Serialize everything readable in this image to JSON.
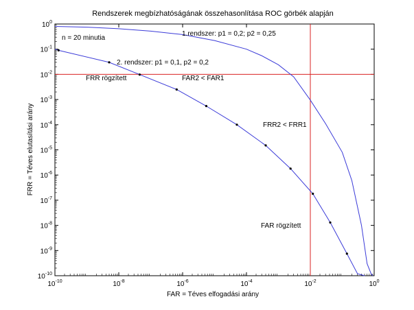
{
  "chart_data": {
    "type": "line",
    "title": "Rendszerek megbízhatóságának összehasonlítása ROC görbék alapján",
    "xlabel": "FAR = Téves elfogadási arány",
    "ylabel": "FRR = Téves elutasítási arány",
    "x_scale": "log",
    "y_scale": "log",
    "xlim": [
      1e-10,
      1
    ],
    "ylim": [
      1e-10,
      1
    ],
    "grid": false,
    "x_ticks": [
      {
        "value": 1e-10,
        "base": "10",
        "exp": "-10"
      },
      {
        "value": 1e-08,
        "base": "10",
        "exp": "-8"
      },
      {
        "value": 1e-06,
        "base": "10",
        "exp": "-6"
      },
      {
        "value": 0.0001,
        "base": "10",
        "exp": "-4"
      },
      {
        "value": 0.01,
        "base": "10",
        "exp": "-2"
      },
      {
        "value": 1,
        "base": "10",
        "exp": "0"
      }
    ],
    "y_ticks": [
      {
        "value": 1,
        "base": "10",
        "exp": "0"
      },
      {
        "value": 0.1,
        "base": "10",
        "exp": "-1"
      },
      {
        "value": 0.01,
        "base": "10",
        "exp": "-2"
      },
      {
        "value": 0.001,
        "base": "10",
        "exp": "-3"
      },
      {
        "value": 0.0001,
        "base": "10",
        "exp": "-4"
      },
      {
        "value": 1e-05,
        "base": "10",
        "exp": "-5"
      },
      {
        "value": 1e-06,
        "base": "10",
        "exp": "-6"
      },
      {
        "value": 1e-07,
        "base": "10",
        "exp": "-7"
      },
      {
        "value": 1e-08,
        "base": "10",
        "exp": "-8"
      },
      {
        "value": 1e-09,
        "base": "10",
        "exp": "-9"
      },
      {
        "value": 1e-10,
        "base": "10",
        "exp": "-10"
      }
    ],
    "series": [
      {
        "name": "1.rendszer: p1 = 0,2; p2 = 0,25",
        "color": "#3a3ad8",
        "markers": false,
        "x": [
          1e-10,
          1e-09,
          1e-08,
          1e-07,
          1e-06,
          1e-05,
          0.0001,
          0.0003,
          0.001,
          0.003,
          0.01,
          0.03,
          0.1,
          0.2,
          0.4,
          0.6,
          0.8,
          0.9
        ],
        "y": [
          0.8,
          0.75,
          0.65,
          0.52,
          0.38,
          0.22,
          0.1,
          0.055,
          0.024,
          0.008,
          0.00095,
          0.00011,
          8e-06,
          6e-07,
          1e-08,
          3e-10,
          1.2e-10,
          1e-10
        ]
      },
      {
        "name": "2. rendszer: p1 = 0,1, p2 = 0,2",
        "color": "#3a3ad8",
        "markers": true,
        "x": [
          1e-10,
          1.3e-10,
          5e-09,
          4.5e-08,
          6.5e-07,
          5.5e-06,
          5e-05,
          0.0004,
          0.0024,
          0.012,
          0.042,
          0.14,
          0.3,
          0.5
        ],
        "y": [
          0.1,
          0.09,
          0.03,
          0.0098,
          0.0025,
          0.00055,
          0.0001,
          1.5e-05,
          1.8e-06,
          1.8e-07,
          1.3e-08,
          7.5e-10,
          1.2e-10,
          1e-10
        ],
        "marker_points": [
          1,
          2,
          3,
          4,
          5,
          6,
          7,
          8,
          9,
          10,
          11
        ]
      }
    ],
    "reference_lines": {
      "color": "#d82020",
      "horizontal_y": 0.01,
      "vertical_x": 0.01
    },
    "annotations": {
      "n_label": "n = 20 minutia",
      "sys1_label": "1.rendszer: p1 = 0,2; p2 = 0,25",
      "sys2_label": "2. rendszer: p1 = 0,1, p2 = 0,2",
      "frr_fixed": "FRR rögzített",
      "far_comparison": "FAR2 < FAR1",
      "frr_comparison": "FRR2 < FRR1",
      "far_fixed": "FAR rögzített"
    }
  }
}
